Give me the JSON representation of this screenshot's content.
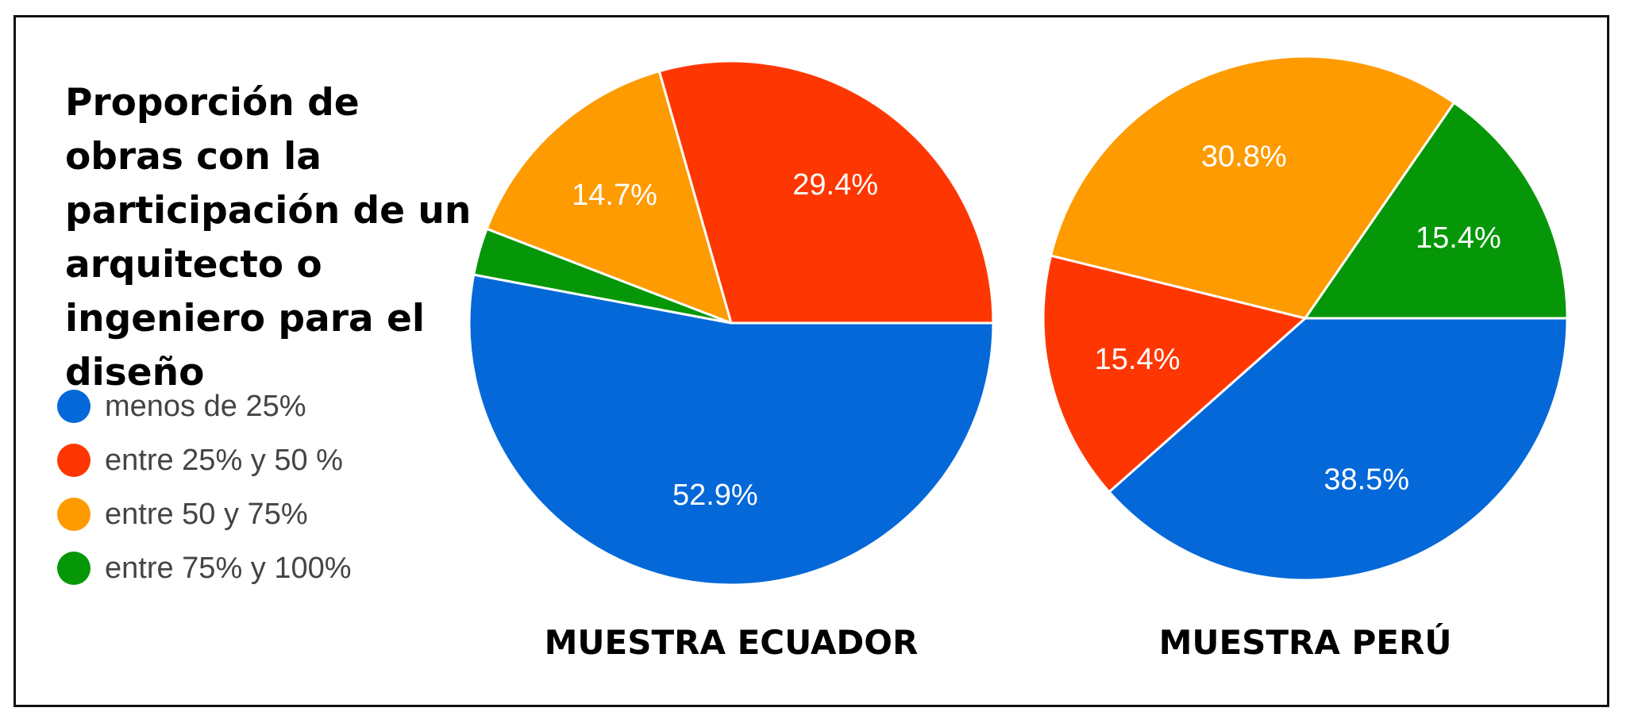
{
  "title": "Proporción de obras con la participación de un arquitecto o ingeniero para el diseño",
  "legend": [
    {
      "label": "menos de 25%",
      "color": "#0468d8"
    },
    {
      "label": "entre 25% y 50 %",
      "color": "#fe3702"
    },
    {
      "label": "entre 50 y 75%",
      "color": "#fe9b00"
    },
    {
      "label": "entre 75% y 100%",
      "color": "#069708"
    }
  ],
  "chart_data": [
    {
      "type": "pie",
      "title": "MUESTRA ECUADOR",
      "categories": [
        "menos de 25%",
        "entre 25% y 50 %",
        "entre 50 y 75%",
        "entre 75% y 100%"
      ],
      "values": [
        52.9,
        29.4,
        14.7,
        2.9
      ],
      "data_labels": [
        "52.9%",
        "29.4%",
        "14.7%",
        ""
      ]
    },
    {
      "type": "pie",
      "title": "MUESTRA PERÚ",
      "categories": [
        "menos de 25%",
        "entre 25% y 50 %",
        "entre 50 y 75%",
        "entre 75% y 100%"
      ],
      "values": [
        38.5,
        15.4,
        30.8,
        15.4
      ],
      "data_labels": [
        "38.5%",
        "15.4%",
        "30.8%",
        "15.4%"
      ]
    }
  ]
}
